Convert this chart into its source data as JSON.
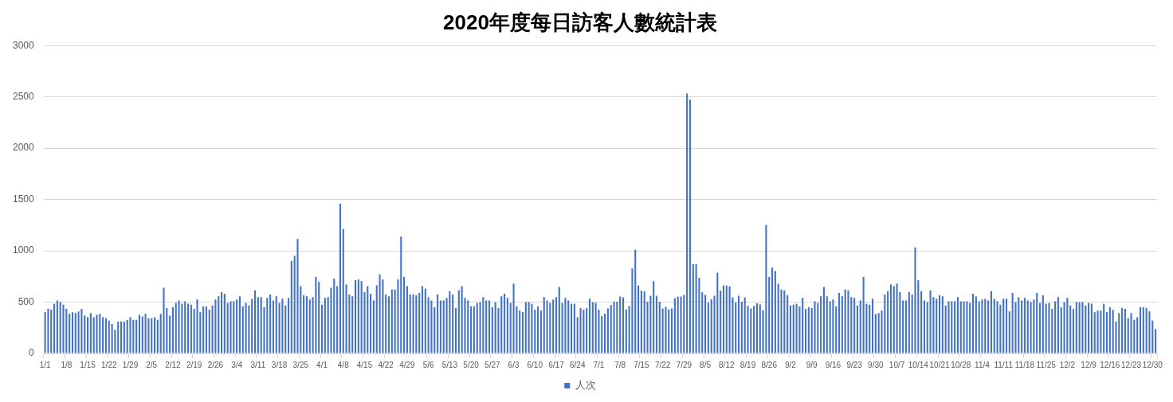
{
  "chart_data": {
    "type": "bar",
    "title": "2020年度每日訪客人數統計表",
    "categories": [
      "1/1",
      null,
      null,
      null,
      null,
      null,
      null,
      "1/8",
      null,
      null,
      null,
      null,
      null,
      null,
      "1/15",
      null,
      null,
      null,
      null,
      null,
      null,
      "1/22",
      null,
      null,
      null,
      null,
      null,
      null,
      "1/29",
      null,
      null,
      null,
      null,
      null,
      null,
      "2/5",
      null,
      null,
      null,
      null,
      null,
      null,
      "2/12",
      null,
      null,
      null,
      null,
      null,
      null,
      "2/19",
      null,
      null,
      null,
      null,
      null,
      null,
      "2/26",
      null,
      null,
      null,
      null,
      null,
      null,
      "3/4",
      null,
      null,
      null,
      null,
      null,
      null,
      "3/11",
      null,
      null,
      null,
      null,
      null,
      null,
      "3/18",
      null,
      null,
      null,
      null,
      null,
      null,
      "3/25",
      null,
      null,
      null,
      null,
      null,
      null,
      "4/1",
      null,
      null,
      null,
      null,
      null,
      null,
      "4/8",
      null,
      null,
      null,
      null,
      null,
      null,
      "4/15",
      null,
      null,
      null,
      null,
      null,
      null,
      "4/22",
      null,
      null,
      null,
      null,
      null,
      null,
      "4/29",
      null,
      null,
      null,
      null,
      null,
      null,
      "5/6",
      null,
      null,
      null,
      null,
      null,
      null,
      "5/13",
      null,
      null,
      null,
      null,
      null,
      null,
      "5/20",
      null,
      null,
      null,
      null,
      null,
      null,
      "5/27",
      null,
      null,
      null,
      null,
      null,
      null,
      "6/3",
      null,
      null,
      null,
      null,
      null,
      null,
      "6/10",
      null,
      null,
      null,
      null,
      null,
      null,
      "6/17",
      null,
      null,
      null,
      null,
      null,
      null,
      "6/24",
      null,
      null,
      null,
      null,
      null,
      null,
      "7/1",
      null,
      null,
      null,
      null,
      null,
      null,
      "7/8",
      null,
      null,
      null,
      null,
      null,
      null,
      "7/15",
      null,
      null,
      null,
      null,
      null,
      null,
      "7/22",
      null,
      null,
      null,
      null,
      null,
      null,
      "7/29",
      null,
      null,
      null,
      null,
      null,
      null,
      "8/5",
      null,
      null,
      null,
      null,
      null,
      null,
      "8/12",
      null,
      null,
      null,
      null,
      null,
      null,
      "8/19",
      null,
      null,
      null,
      null,
      null,
      null,
      "8/26",
      null,
      null,
      null,
      null,
      null,
      null,
      "9/2",
      null,
      null,
      null,
      null,
      null,
      null,
      "9/9",
      null,
      null,
      null,
      null,
      null,
      null,
      "9/16",
      null,
      null,
      null,
      null,
      null,
      null,
      "9/23",
      null,
      null,
      null,
      null,
      null,
      null,
      "9/30",
      null,
      null,
      null,
      null,
      null,
      null,
      "10/7",
      null,
      null,
      null,
      null,
      null,
      null,
      "10/14",
      null,
      null,
      null,
      null,
      null,
      null,
      "10/21",
      null,
      null,
      null,
      null,
      null,
      null,
      "10/28",
      null,
      null,
      null,
      null,
      null,
      null,
      "11/4",
      null,
      null,
      null,
      null,
      null,
      null,
      "11/11",
      null,
      null,
      null,
      null,
      null,
      null,
      "11/18",
      null,
      null,
      null,
      null,
      null,
      null,
      "11/25",
      null,
      null,
      null,
      null,
      null,
      null,
      "12/2",
      null,
      null,
      null,
      null,
      null,
      null,
      "12/9",
      null,
      null,
      null,
      null,
      null,
      null,
      "12/16",
      null,
      null,
      null,
      null,
      null,
      null,
      "12/23",
      null,
      null,
      null,
      null,
      null,
      null,
      "12/30",
      null
    ],
    "series": [
      {
        "name": "人次",
        "color": "#4472c4",
        "values": [
          404,
          437,
          426,
          484,
          516,
          500,
          475,
          434,
          385,
          402,
          393,
          410,
          434,
          369,
          352,
          393,
          352,
          377,
          385,
          352,
          344,
          320,
          287,
          230,
          311,
          311,
          311,
          328,
          352,
          328,
          328,
          377,
          361,
          385,
          344,
          344,
          352,
          328,
          385,
          639,
          443,
          369,
          451,
          492,
          516,
          484,
          508,
          484,
          475,
          434,
          525,
          402,
          459,
          459,
          426,
          467,
          525,
          557,
          598,
          582,
          492,
          508,
          508,
          525,
          557,
          459,
          492,
          467,
          533,
          615,
          549,
          549,
          451,
          541,
          574,
          516,
          557,
          492,
          533,
          467,
          541,
          902,
          951,
          1115,
          656,
          566,
          557,
          525,
          549,
          746,
          697,
          475,
          541,
          549,
          639,
          730,
          656,
          1460,
          1213,
          672,
          574,
          557,
          713,
          721,
          705,
          598,
          656,
          582,
          516,
          664,
          770,
          721,
          574,
          557,
          623,
          623,
          721,
          1139,
          746,
          656,
          574,
          574,
          566,
          590,
          656,
          631,
          549,
          516,
          451,
          574,
          516,
          516,
          541,
          607,
          574,
          443,
          615,
          656,
          541,
          516,
          459,
          459,
          492,
          500,
          549,
          516,
          516,
          451,
          500,
          443,
          557,
          582,
          541,
          492,
          680,
          459,
          418,
          402,
          500,
          500,
          484,
          426,
          459,
          418,
          549,
          516,
          492,
          525,
          549,
          648,
          492,
          541,
          516,
          484,
          484,
          352,
          443,
          426,
          443,
          533,
          500,
          493,
          427,
          363,
          388,
          438,
          471,
          504,
          504,
          554,
          546,
          429,
          463,
          828,
          1011,
          662,
          612,
          604,
          504,
          562,
          704,
          562,
          504,
          438,
          454,
          429,
          438,
          537,
          554,
          554,
          571,
          2532,
          2474,
          870,
          870,
          737,
          596,
          571,
          496,
          529,
          562,
          787,
          612,
          662,
          662,
          654,
          546,
          496,
          562,
          504,
          546,
          463,
          438,
          463,
          488,
          479,
          421,
          1252,
          745,
          837,
          803,
          679,
          623,
          615,
          566,
          467,
          475,
          484,
          459,
          541,
          434,
          451,
          443,
          508,
          492,
          557,
          648,
          557,
          508,
          525,
          459,
          590,
          557,
          623,
          615,
          549,
          541,
          467,
          516,
          746,
          484,
          475,
          533,
          385,
          393,
          418,
          574,
          607,
          672,
          656,
          680,
          598,
          516,
          516,
          598,
          574,
          1033,
          713,
          607,
          516,
          500,
          615,
          549,
          533,
          566,
          557,
          467,
          508,
          508,
          508,
          549,
          508,
          508,
          508,
          492,
          582,
          557,
          508,
          525,
          533,
          516,
          607,
          533,
          508,
          475,
          533,
          533,
          410,
          590,
          500,
          549,
          516,
          541,
          516,
          500,
          525,
          590,
          492,
          566,
          484,
          492,
          434,
          508,
          549,
          451,
          500,
          541,
          467,
          434,
          500,
          500,
          500,
          467,
          492,
          484,
          402,
          418,
          418,
          484,
          402,
          451,
          426,
          311,
          393,
          443,
          434,
          344,
          393,
          328,
          352,
          451,
          451,
          443,
          410,
          320,
          238
        ]
      }
    ],
    "ylim": [
      0,
      3000
    ],
    "yticks": [
      0,
      500,
      1000,
      1500,
      2000,
      2500,
      3000
    ],
    "grid": "y",
    "legend": "bottom"
  }
}
